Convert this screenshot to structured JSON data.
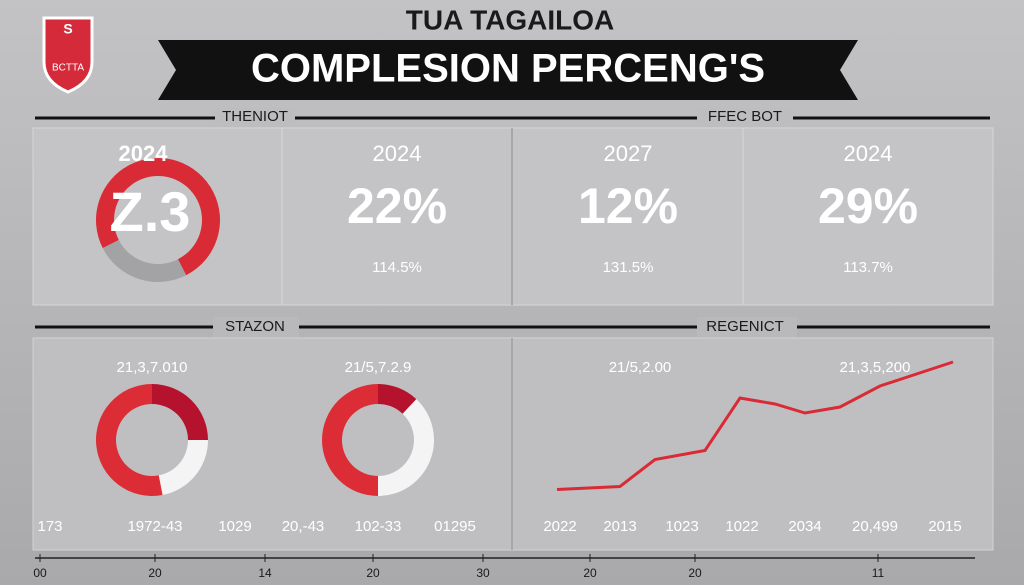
{
  "header": {
    "logo_top": "S",
    "logo_bottom": "BCTTA",
    "title": "TUA TAGAILOA",
    "banner": "COMPLESION PERCENG'S"
  },
  "section1": {
    "left_label": "THENIOT",
    "right_label": "FFEC BOT",
    "cards": [
      {
        "year": "2024",
        "big": "Z.3",
        "ring": [
          75,
          25
        ]
      },
      {
        "year": "2024",
        "big": "22%",
        "small": "114.5%"
      },
      {
        "year": "2027",
        "big": "12%",
        "small": "131.5%"
      },
      {
        "year": "2024",
        "big": "29%",
        "small": "113.7%"
      }
    ]
  },
  "section2": {
    "left_label": "STAZON",
    "right_label": "REGENICT",
    "donuts": [
      {
        "label": "21,3,7.010",
        "segments": [
          25,
          22,
          53
        ]
      },
      {
        "label": "21/5,7.2.9",
        "segments": [
          12,
          38,
          50
        ]
      }
    ],
    "left_bottom": [
      "173",
      "1972-43",
      "1029",
      "20,-43",
      "102-33",
      "01295"
    ],
    "line_labels": [
      "21/5,2.00",
      "21,3,5,200"
    ],
    "line": {
      "values": [
        7,
        9,
        27,
        33,
        68,
        64,
        58,
        62,
        76,
        92
      ]
    },
    "right_bottom": [
      "2022",
      "2013",
      "1023",
      "1022",
      "2034",
      "20,499",
      "2015"
    ]
  },
  "footer": {
    "axis": [
      "00",
      "20",
      "14",
      "20",
      "30",
      "20",
      "20",
      "11"
    ]
  }
}
